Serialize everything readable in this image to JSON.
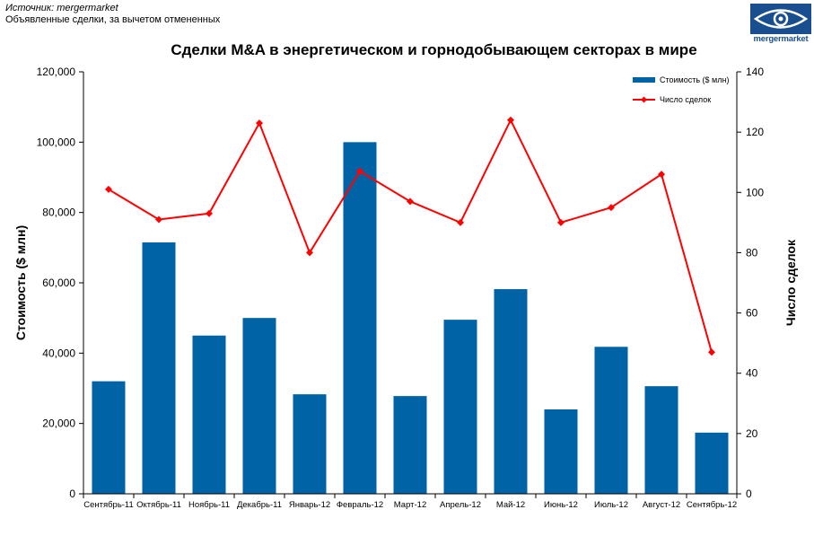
{
  "source": {
    "line1": "Источник: mergermarket",
    "line2": "Объявленные сделки, за вычетом отмененных"
  },
  "logo": {
    "text": "mergermarket",
    "color": "#1a4f8f"
  },
  "chart_data": {
    "type": "bar",
    "title": "Сделки M&A в энергетическом и горнодобывающем секторах в мире",
    "categories": [
      "Сентябрь-11",
      "Октябрь-11",
      "Ноябрь-11",
      "Декабрь-11",
      "Январь-12",
      "Февраль-12",
      "Март-12",
      "Апрель-12",
      "Май-12",
      "Июнь-12",
      "Июль-12",
      "Август-12",
      "Сентябрь-12"
    ],
    "series": [
      {
        "name": "Стоимость ($ млн)",
        "type": "bar",
        "axis": "left",
        "color": "#0063a6",
        "values": [
          32000,
          71500,
          45000,
          50000,
          28300,
          100000,
          27800,
          49500,
          58200,
          24000,
          41800,
          30600,
          17400
        ]
      },
      {
        "name": "Число сделок",
        "type": "line",
        "axis": "right",
        "color": "#ff0000",
        "values": [
          101,
          91,
          93,
          123,
          80,
          107,
          97,
          90,
          124,
          90,
          95,
          106,
          47
        ]
      }
    ],
    "ylabel": "Стоимость  ($ млн)",
    "ylabel_right": "Число сделок",
    "ylim": [
      0,
      120000
    ],
    "ylim_right": [
      0,
      140
    ],
    "yticks": [
      "0",
      "20,000",
      "40,000",
      "60,000",
      "80,000",
      "100,000",
      "120,000"
    ],
    "yticks_right": [
      "0",
      "20",
      "40",
      "60",
      "80",
      "100",
      "120",
      "140"
    ],
    "grid": false,
    "legend": "top-right"
  }
}
